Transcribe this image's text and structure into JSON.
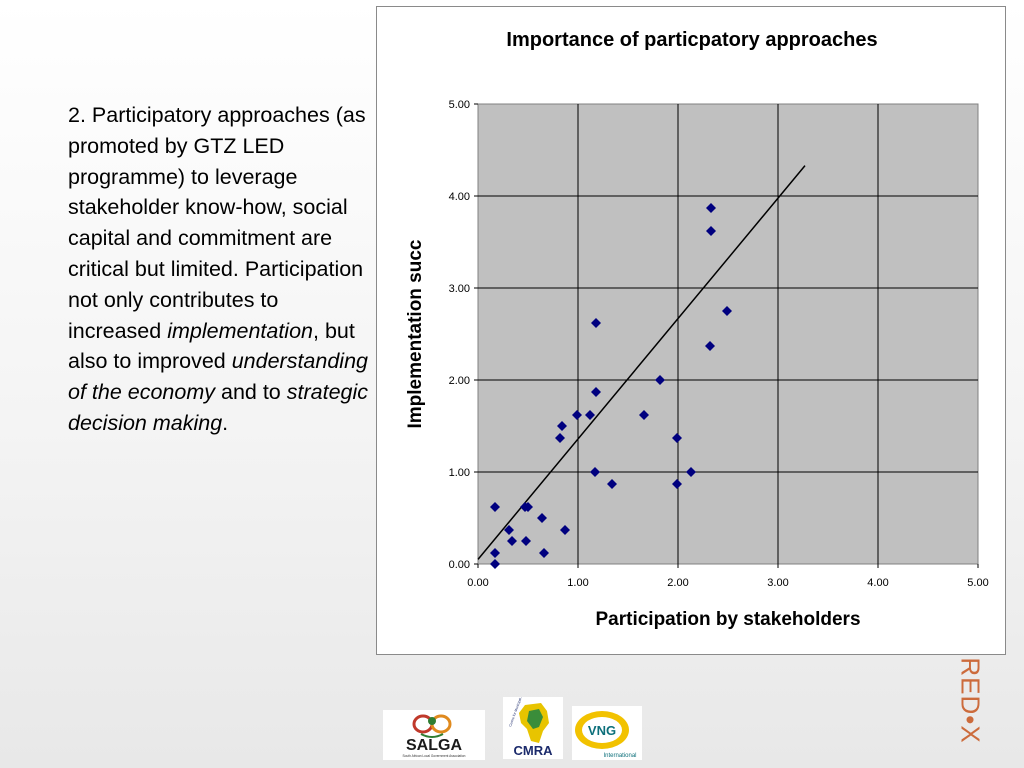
{
  "slide": {
    "text_parts": [
      {
        "text": "2. Participatory approaches (as promoted by GTZ LED programme) to leverage stakeholder know-how, social capital and commitment are critical but limited. Participation not only contributes to increased ",
        "italic": false
      },
      {
        "text": "implementation",
        "italic": true
      },
      {
        "text": ", but also to improved ",
        "italic": false
      },
      {
        "text": "understanding of the economy",
        "italic": true
      },
      {
        "text": " and to ",
        "italic": false
      },
      {
        "text": "strategic decision making",
        "italic": true
      },
      {
        "text": ".",
        "italic": false
      }
    ]
  },
  "chart_data": {
    "type": "scatter",
    "title": "Importance of particpatory approaches",
    "xlabel": "Participation by stakeholders",
    "ylabel": "Implementation succ",
    "xlim": [
      0,
      5
    ],
    "ylim": [
      0,
      5
    ],
    "x_ticks": [
      "0.00",
      "1.00",
      "2.00",
      "3.00",
      "4.00",
      "5.00"
    ],
    "y_ticks": [
      "0.00",
      "1.00",
      "2.00",
      "3.00",
      "4.00",
      "5.00"
    ],
    "grid": true,
    "plot_background": "#c0c0c0",
    "marker_color": "#00007f",
    "marker": "diamond",
    "points": [
      [
        0.17,
        0.62
      ],
      [
        0.17,
        0.12
      ],
      [
        0.17,
        0.0
      ],
      [
        0.31,
        0.37
      ],
      [
        0.34,
        0.25
      ],
      [
        0.47,
        0.62
      ],
      [
        0.5,
        0.62
      ],
      [
        0.48,
        0.25
      ],
      [
        0.64,
        0.5
      ],
      [
        0.66,
        0.12
      ],
      [
        0.82,
        1.37
      ],
      [
        0.84,
        1.5
      ],
      [
        0.87,
        0.37
      ],
      [
        0.99,
        1.62
      ],
      [
        1.12,
        1.62
      ],
      [
        1.17,
        1.0
      ],
      [
        1.18,
        1.87
      ],
      [
        1.18,
        2.62
      ],
      [
        1.34,
        0.87
      ],
      [
        1.66,
        1.62
      ],
      [
        1.82,
        2.0
      ],
      [
        1.99,
        1.37
      ],
      [
        1.99,
        0.87
      ],
      [
        2.13,
        1.0
      ],
      [
        2.32,
        2.37
      ],
      [
        2.33,
        3.87
      ],
      [
        2.33,
        3.62
      ],
      [
        2.49,
        2.75
      ]
    ],
    "trendline": {
      "x": [
        0.0,
        3.27
      ],
      "y": [
        0.05,
        4.33
      ],
      "color": "#000000"
    }
  },
  "logos": {
    "salga": {
      "text": "SALGA",
      "tagline": "South African Local Government Association"
    },
    "cmra": {
      "text": "CMRA",
      "arc_text": "Centre for Municipal Research & Advice"
    },
    "vng": {
      "text": "VNG",
      "subtext": "International"
    }
  },
  "brand": {
    "redx": "RED•X"
  },
  "colors": {
    "accent_orange": "#cc6b3c",
    "salga_red": "#c0392b",
    "vng_yellow": "#f2c200",
    "vng_teal": "#0c6f7a"
  }
}
